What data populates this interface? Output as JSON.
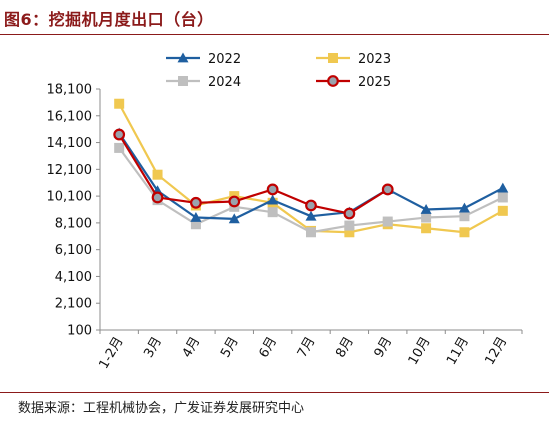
{
  "title": "图6：挖掘机月度出口（台）",
  "source": "数据来源：工程机械协会，广发证券发展研究中心",
  "chart_data": {
    "type": "line",
    "title": "图6：挖掘机月度出口（台）",
    "xlabel": "",
    "ylabel": "",
    "categories": [
      "1-2月",
      "3月",
      "4月",
      "5月",
      "6月",
      "7月",
      "8月",
      "9月",
      "10月",
      "11月",
      "12月"
    ],
    "ylim": [
      100,
      18100
    ],
    "yticks": [
      100,
      2100,
      4100,
      6100,
      8100,
      10100,
      12100,
      14100,
      16100,
      18100
    ],
    "ytick_labels": [
      "100",
      "2,100",
      "4,100",
      "6,100",
      "8,100",
      "10,100",
      "12,100",
      "14,100",
      "16,100",
      "18,100"
    ],
    "grid": false,
    "legend_position": "top",
    "series": [
      {
        "name": "2022",
        "color": "#1f5fa0",
        "marker": "triangle",
        "values": [
          14800,
          10500,
          8500,
          8400,
          9800,
          8600,
          8900,
          10600,
          9100,
          9200,
          10700
        ]
      },
      {
        "name": "2023",
        "color": "#f0c850",
        "marker": "square",
        "values": [
          17000,
          11700,
          9400,
          10100,
          9600,
          7500,
          7400,
          8000,
          7700,
          7400,
          9000
        ]
      },
      {
        "name": "2024",
        "color": "#bfbfbf",
        "marker": "square",
        "values": [
          13700,
          9800,
          8000,
          9300,
          8900,
          7400,
          7900,
          8200,
          8500,
          8600,
          10000
        ]
      },
      {
        "name": "2025",
        "color": "#c00000",
        "marker": "circle",
        "values": [
          14700,
          10000,
          9600,
          9700,
          10600,
          9400,
          8800,
          10600,
          null,
          null,
          null
        ]
      }
    ]
  }
}
